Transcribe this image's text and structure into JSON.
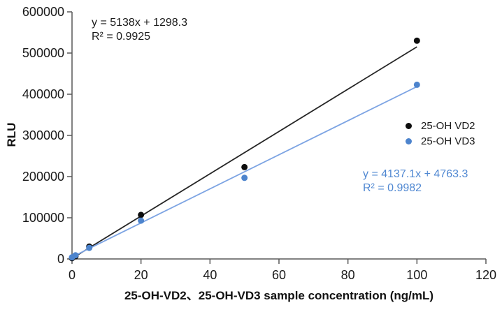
{
  "chart_data": {
    "type": "scatter",
    "title": "",
    "xlabel": "25-OH-VD2、25-OH-VD3 sample concentration (ng/mL)",
    "ylabel": "RLU",
    "xlim": [
      0,
      120
    ],
    "ylim": [
      0,
      600000
    ],
    "x_ticks": [
      0,
      20,
      40,
      60,
      80,
      100,
      120
    ],
    "y_ticks": [
      0,
      100000,
      200000,
      300000,
      400000,
      500000,
      600000
    ],
    "grid": false,
    "legend_position": "right-middle",
    "axis_color": "#595959",
    "tick_label_color": "#1a1a1a",
    "series": [
      {
        "name": "25-OH VD2",
        "marker_color": "#0d0d0d",
        "line_color": "#262626",
        "annotation_color": "#1a1a1a",
        "x": [
          0,
          1,
          5,
          20,
          50,
          100
        ],
        "y": [
          2000,
          6500,
          30000,
          107000,
          223000,
          530000
        ],
        "trendline": {
          "slope": 5138,
          "intercept": 1298.3,
          "x_start": 0,
          "x_end": 100
        },
        "equation": "y = 5138x + 1298.3",
        "r_squared": "R² = 0.9925"
      },
      {
        "name": "25-OH VD3",
        "marker_color": "#4d84cd",
        "line_color": "#7da4e3",
        "annotation_color": "#5088d2",
        "x": [
          0,
          1,
          5,
          20,
          50,
          100
        ],
        "y": [
          4000,
          9000,
          27000,
          93000,
          197000,
          423000
        ],
        "trendline": {
          "slope": 4137.1,
          "intercept": 4763.3,
          "x_start": 0,
          "x_end": 100
        },
        "equation": "y = 4137.1x + 4763.3",
        "r_squared": "R² = 0.9982"
      }
    ]
  }
}
